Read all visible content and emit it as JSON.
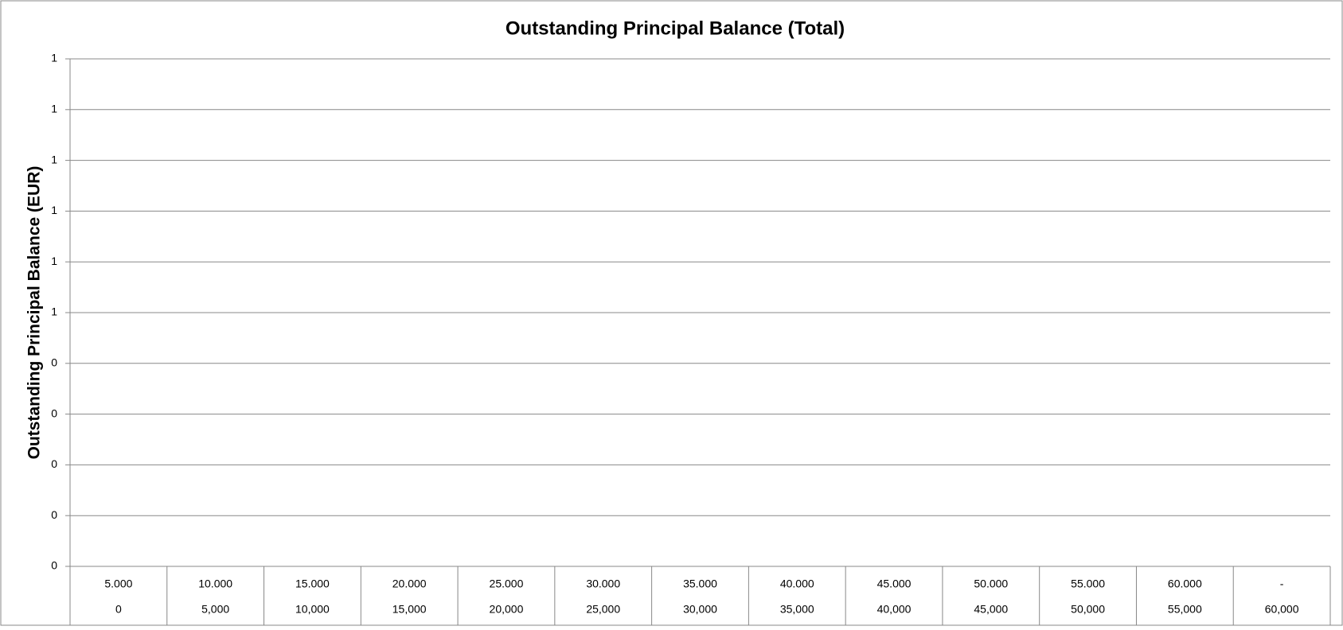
{
  "chart_data": {
    "type": "bar",
    "title": "Outstanding Principal Balance (Total)",
    "y_label": "Outstanding Principal Balance (EUR)",
    "categories": [
      "5.000",
      "10.000",
      "15.000",
      "20.000",
      "25.000",
      "30.000",
      "35.000",
      "40.000",
      "45.000",
      "50.000",
      "55.000",
      "60.000",
      "-"
    ],
    "category_sublabels": [
      "0",
      "5,000",
      "10,000",
      "15,000",
      "20,000",
      "25,000",
      "30,000",
      "35,000",
      "40,000",
      "45,000",
      "50,000",
      "55,000",
      "60,000"
    ],
    "values": [
      null,
      null,
      null,
      null,
      null,
      null,
      null,
      null,
      null,
      null,
      null,
      null,
      null
    ],
    "color": "#4472c4",
    "ylim": [
      0,
      1
    ],
    "yticks": [
      0,
      {
        "value": 0.1,
        "label": "0"
      },
      {
        "value": 0.2,
        "label": "0"
      },
      {
        "value": 0.3,
        "label": "0"
      },
      {
        "value": 0.4,
        "label": "0"
      },
      {
        "value": 0.5,
        "label": "1"
      },
      {
        "value": 0.6,
        "label": "1"
      },
      {
        "value": 0.7,
        "label": "1"
      },
      {
        "value": 0.8,
        "label": "1"
      },
      {
        "value": 0.9,
        "label": "1"
      },
      1
    ],
    "grid": true
  }
}
